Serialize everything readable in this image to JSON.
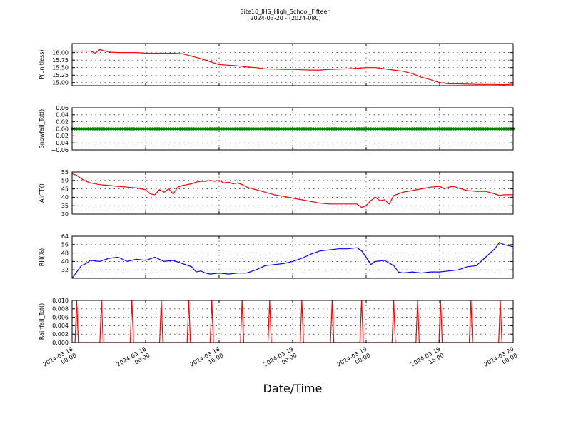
{
  "title": "Site16_JHS_High_School_Fifteen",
  "subtitle": "2024-03-20 - (2024-080)",
  "xlabel": "Date/Time",
  "x_tick_labels": [
    [
      "2024-03-18",
      "00:00"
    ],
    [
      "2024-03-18",
      "08:00"
    ],
    [
      "2024-03-18",
      "16:00"
    ],
    [
      "2024-03-19",
      "00:00"
    ],
    [
      "2024-03-19",
      "08:00"
    ],
    [
      "2024-03-19",
      "16:00"
    ],
    [
      "2024-03-20",
      "00:00"
    ]
  ],
  "chart_data": [
    {
      "type": "line",
      "ylabel": "P(unitless)",
      "color": "#ff0000",
      "xlim": [
        0,
        48
      ],
      "ylim": [
        14.9,
        16.3
      ],
      "yticks": [
        15.0,
        15.25,
        15.5,
        15.75,
        16.0
      ],
      "ytick_labels": [
        "15.00",
        "15.25",
        "15.50",
        "15.75",
        "16.00"
      ],
      "grid": true,
      "x": [
        0,
        2,
        2.5,
        3,
        4,
        5,
        6,
        7,
        8,
        9,
        10,
        11,
        12,
        13,
        14,
        15,
        16,
        17,
        18,
        19,
        20,
        21,
        22,
        23,
        24,
        25,
        26,
        27,
        28,
        29,
        30,
        31,
        32,
        33,
        34,
        35,
        36,
        37,
        38,
        39,
        40,
        41,
        42,
        43,
        44,
        45,
        46,
        47,
        48
      ],
      "y": [
        16.05,
        16.05,
        15.98,
        16.1,
        16.02,
        16.0,
        16.0,
        16.0,
        15.98,
        15.98,
        15.98,
        15.98,
        15.96,
        15.88,
        15.8,
        15.7,
        15.6,
        15.58,
        15.56,
        15.52,
        15.5,
        15.46,
        15.45,
        15.44,
        15.44,
        15.43,
        15.42,
        15.42,
        15.44,
        15.45,
        15.46,
        15.48,
        15.5,
        15.5,
        15.46,
        15.42,
        15.38,
        15.3,
        15.18,
        15.1,
        15.0,
        14.96,
        14.96,
        14.95,
        14.94,
        14.94,
        14.94,
        14.93,
        14.95
      ]
    },
    {
      "type": "scatter",
      "ylabel": "Snowfall_Tot()",
      "color": "#008000",
      "xlim": [
        0,
        48
      ],
      "ylim": [
        -0.06,
        0.06
      ],
      "yticks": [
        -0.06,
        -0.04,
        -0.02,
        0.0,
        0.02,
        0.04,
        0.06
      ],
      "ytick_labels": [
        "−0.06",
        "−0.04",
        "−0.02",
        "0.00",
        "0.02",
        "0.04",
        "0.06"
      ],
      "grid": true,
      "x_range": [
        0,
        48
      ],
      "constant_value": 0.0
    },
    {
      "type": "line",
      "ylabel": "AirTF()",
      "color": "#ff0000",
      "xlim": [
        0,
        48
      ],
      "ylim": [
        30,
        55
      ],
      "yticks": [
        30,
        35,
        40,
        45,
        50,
        55
      ],
      "ytick_labels": [
        "30",
        "35",
        "40",
        "45",
        "50",
        "55"
      ],
      "grid": true,
      "x": [
        0,
        0.5,
        1,
        1.5,
        2,
        3,
        4,
        5,
        6,
        7,
        8,
        8.5,
        9,
        9.5,
        10,
        10.5,
        11,
        11.5,
        12,
        12.5,
        13,
        13.5,
        14,
        14.5,
        15,
        15.5,
        16,
        16.5,
        17,
        17.5,
        18,
        18.5,
        19,
        20,
        21,
        22,
        23,
        24,
        25,
        26,
        27,
        28,
        29,
        30,
        31,
        31.5,
        32,
        32.5,
        33,
        33.5,
        34,
        34.5,
        35,
        36,
        37,
        38,
        39,
        40,
        40.5,
        41,
        41.5,
        42,
        43,
        44,
        45,
        46,
        46.5,
        47,
        48
      ],
      "y": [
        54,
        53,
        51,
        49.5,
        48.5,
        47.5,
        47,
        46.5,
        46,
        45.5,
        44.5,
        42,
        41.5,
        44.5,
        43,
        45,
        42,
        46,
        47,
        47.5,
        48,
        49,
        49.5,
        49.5,
        50,
        49.5,
        50,
        48.5,
        49,
        48,
        48.5,
        47.5,
        46,
        44.5,
        43,
        41.5,
        40.5,
        39.5,
        38.5,
        37.5,
        36.5,
        36,
        36,
        36,
        36,
        34,
        35,
        38,
        40,
        38,
        38.5,
        36,
        41,
        43,
        44,
        45,
        46,
        46.5,
        45,
        46,
        46.5,
        45.5,
        44,
        43.5,
        43.5,
        42,
        41,
        41.5,
        41.5
      ]
    },
    {
      "type": "line",
      "ylabel": "RH(%)",
      "color": "#0000ff",
      "xlim": [
        0,
        48
      ],
      "ylim": [
        24,
        64
      ],
      "yticks": [
        32,
        40,
        48,
        56,
        64
      ],
      "ytick_labels": [
        "32",
        "40",
        "48",
        "56",
        "64"
      ],
      "grid": true,
      "x": [
        0,
        0.5,
        1,
        1.5,
        2,
        3,
        4,
        5,
        6,
        7,
        8,
        9,
        10,
        11,
        12,
        13,
        13.5,
        14,
        14.5,
        15,
        16,
        17,
        18,
        19,
        20,
        21,
        22,
        23,
        24,
        25,
        26,
        27,
        28,
        29,
        30,
        31,
        31.5,
        32,
        32.5,
        33,
        34,
        35,
        35.5,
        36,
        37,
        38,
        39,
        40,
        41,
        42,
        43,
        44,
        45,
        46,
        46.5,
        47,
        48
      ],
      "y": [
        24,
        30,
        36,
        38,
        41,
        40,
        43,
        44,
        40,
        42,
        41,
        44,
        40,
        41,
        38,
        35,
        30,
        31,
        29,
        28,
        29,
        28,
        29,
        29,
        32,
        36,
        37,
        38,
        40,
        43,
        47,
        50,
        51,
        52,
        52,
        53,
        50,
        44,
        37,
        40,
        41,
        36,
        30,
        29,
        30,
        29,
        30,
        30,
        31,
        32,
        35,
        36,
        44,
        52,
        58,
        56,
        54
      ]
    },
    {
      "type": "line",
      "ylabel": "Rainfall_Tot()",
      "color": "#ff0000",
      "xlim": [
        0,
        48
      ],
      "ylim": [
        0,
        0.01
      ],
      "yticks": [
        0.0,
        0.002,
        0.004,
        0.006,
        0.008,
        0.01
      ],
      "ytick_labels": [
        "0.000",
        "0.002",
        "0.004",
        "0.006",
        "0.008",
        "0.010"
      ],
      "grid": true,
      "spike_value": 0.01,
      "spikes_x": [
        0.5,
        3.2,
        6.5,
        9.7,
        12.7,
        15.2,
        18.5,
        21.5,
        25,
        28.3,
        31.5,
        35,
        37.6,
        40.1,
        43.4,
        46.6
      ]
    }
  ]
}
